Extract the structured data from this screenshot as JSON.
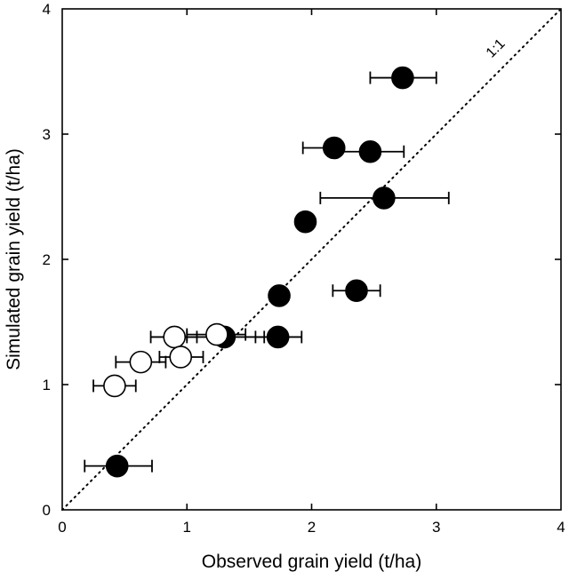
{
  "chart_data": {
    "type": "scatter",
    "title": "",
    "xlabel": "Observed grain yield (t/ha)",
    "ylabel": "Simulated grain yield (t/ha)",
    "xlim": [
      0,
      4
    ],
    "ylim": [
      0,
      4
    ],
    "xticks": [
      "0",
      "1",
      "2",
      "3",
      "4"
    ],
    "yticks": [
      "0",
      "1",
      "2",
      "3",
      "4"
    ],
    "grid": false,
    "reference_line": {
      "label": "1:1",
      "style": "dotted",
      "slope": 1,
      "intercept": 0
    },
    "series": [
      {
        "marker": "filled-circle",
        "color": "#000000",
        "points": [
          {
            "x": 0.44,
            "y": 0.35,
            "xerr": [
              0.18,
              0.72
            ]
          },
          {
            "x": 1.3,
            "y": 1.38,
            "xerr": [
              1.0,
              1.62
            ]
          },
          {
            "x": 1.73,
            "y": 1.38,
            "xerr": [
              1.55,
              1.92
            ]
          },
          {
            "x": 1.74,
            "y": 1.71
          },
          {
            "x": 1.95,
            "y": 2.3
          },
          {
            "x": 2.36,
            "y": 1.75,
            "xerr": [
              2.17,
              2.55
            ]
          },
          {
            "x": 2.18,
            "y": 2.89,
            "xerr": [
              1.93,
              2.18
            ]
          },
          {
            "x": 2.47,
            "y": 2.86,
            "xerr": [
              2.18,
              2.74
            ]
          },
          {
            "x": 2.58,
            "y": 2.49,
            "xerr": [
              2.07,
              3.1
            ]
          },
          {
            "x": 2.73,
            "y": 3.45,
            "xerr": [
              2.47,
              3.0
            ]
          }
        ]
      },
      {
        "marker": "open-circle",
        "color": "#000000",
        "points": [
          {
            "x": 0.42,
            "y": 0.99,
            "xerr": [
              0.25,
              0.59
            ]
          },
          {
            "x": 0.63,
            "y": 1.18,
            "xerr": [
              0.43,
              0.83
            ]
          },
          {
            "x": 0.9,
            "y": 1.38,
            "xerr": [
              0.71,
              1.08
            ]
          },
          {
            "x": 0.95,
            "y": 1.22,
            "xerr": [
              0.78,
              1.13
            ]
          },
          {
            "x": 1.24,
            "y": 1.4,
            "xerr": [
              1.0,
              1.47
            ]
          }
        ]
      }
    ]
  }
}
